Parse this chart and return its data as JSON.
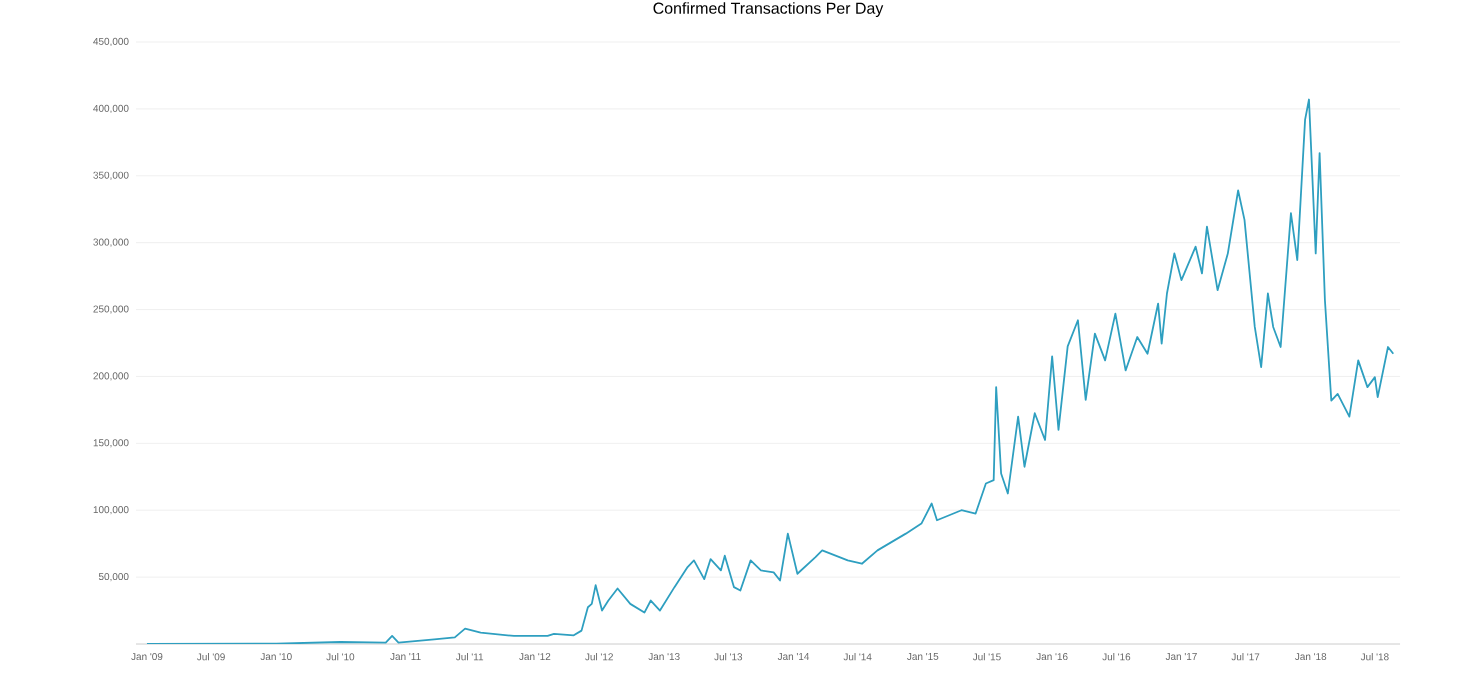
{
  "chart_data": {
    "type": "line",
    "title": "Confirmed Transactions Per Day",
    "color": "#2e9fc0",
    "grid": "y",
    "xlim": [
      "2008-12-01",
      "2018-09-10"
    ],
    "ylim": [
      0,
      450000
    ],
    "xticks": [
      {
        "value": "2009-01-01",
        "label": "Jan '09"
      },
      {
        "value": "2009-07-01",
        "label": "Jul '09"
      },
      {
        "value": "2010-01-01",
        "label": "Jan '10"
      },
      {
        "value": "2010-07-01",
        "label": "Jul '10"
      },
      {
        "value": "2011-01-01",
        "label": "Jan '11"
      },
      {
        "value": "2011-07-01",
        "label": "Jul '11"
      },
      {
        "value": "2012-01-01",
        "label": "Jan '12"
      },
      {
        "value": "2012-07-01",
        "label": "Jul '12"
      },
      {
        "value": "2013-01-01",
        "label": "Jan '13"
      },
      {
        "value": "2013-07-01",
        "label": "Jul '13"
      },
      {
        "value": "2014-01-01",
        "label": "Jan '14"
      },
      {
        "value": "2014-07-01",
        "label": "Jul '14"
      },
      {
        "value": "2015-01-01",
        "label": "Jan '15"
      },
      {
        "value": "2015-07-01",
        "label": "Jul '15"
      },
      {
        "value": "2016-01-01",
        "label": "Jan '16"
      },
      {
        "value": "2016-07-01",
        "label": "Jul '16"
      },
      {
        "value": "2017-01-01",
        "label": "Jan '17"
      },
      {
        "value": "2017-07-01",
        "label": "Jul '17"
      },
      {
        "value": "2018-01-01",
        "label": "Jan '18"
      },
      {
        "value": "2018-07-01",
        "label": "Jul '18"
      }
    ],
    "yticks": [
      {
        "value": 50000,
        "label": "50,000"
      },
      {
        "value": 100000,
        "label": "100,000"
      },
      {
        "value": 150000,
        "label": "150,000"
      },
      {
        "value": 200000,
        "label": "200,000"
      },
      {
        "value": 250000,
        "label": "250,000"
      },
      {
        "value": 300000,
        "label": "300,000"
      },
      {
        "value": 350000,
        "label": "350,000"
      },
      {
        "value": 400000,
        "label": "400,000"
      },
      {
        "value": 450000,
        "label": "450,000"
      }
    ],
    "x": [
      "2009-01-01",
      "2010-01-01",
      "2010-07-01",
      "2010-11-06",
      "2010-11-24",
      "2010-12-12",
      "2011-03-23",
      "2011-05-20",
      "2011-06-18",
      "2011-08-01",
      "2011-11-03",
      "2012-02-06",
      "2012-02-24",
      "2012-04-20",
      "2012-05-12",
      "2012-05-30",
      "2012-06-10",
      "2012-06-21",
      "2012-07-09",
      "2012-07-27",
      "2012-08-22",
      "2012-09-27",
      "2012-11-06",
      "2012-11-24",
      "2012-12-20",
      "2013-01-30",
      "2013-03-08",
      "2013-03-26",
      "2013-04-24",
      "2013-05-12",
      "2013-06-10",
      "2013-06-21",
      "2013-07-17",
      "2013-08-04",
      "2013-09-02",
      "2013-10-01",
      "2013-11-06",
      "2013-11-24",
      "2013-12-16",
      "2014-01-12",
      "2014-03-04",
      "2014-03-23",
      "2014-06-03",
      "2014-07-13",
      "2014-08-26",
      "2014-11-14",
      "2014-12-28",
      "2015-01-26",
      "2015-02-10",
      "2015-04-20",
      "2015-05-30",
      "2015-06-28",
      "2015-07-20",
      "2015-07-27",
      "2015-08-10",
      "2015-08-29",
      "2015-09-27",
      "2015-10-15",
      "2015-11-13",
      "2015-12-12",
      "2016-01-01",
      "2016-01-19",
      "2016-02-14",
      "2016-03-14",
      "2016-04-05",
      "2016-05-01",
      "2016-05-30",
      "2016-06-28",
      "2016-07-27",
      "2016-08-29",
      "2016-09-27",
      "2016-10-27",
      "2016-11-06",
      "2016-11-21",
      "2016-12-12",
      "2017-01-01",
      "2017-02-10",
      "2017-02-28",
      "2017-03-14",
      "2017-04-13",
      "2017-05-12",
      "2017-06-10",
      "2017-06-28",
      "2017-07-27",
      "2017-08-14",
      "2017-09-02",
      "2017-09-17",
      "2017-10-08",
      "2017-11-06",
      "2017-11-24",
      "2017-12-16",
      "2017-12-27",
      "2018-01-15",
      "2018-01-26",
      "2018-02-10",
      "2018-02-28",
      "2018-03-18",
      "2018-04-20",
      "2018-05-15",
      "2018-06-10",
      "2018-07-01",
      "2018-07-09",
      "2018-08-07",
      "2018-08-22"
    ],
    "values": [
      100,
      200,
      1500,
      1000,
      6000,
      1000,
      3500,
      5000,
      11500,
      8500,
      6000,
      6000,
      7500,
      6500,
      10000,
      27500,
      30000,
      44000,
      25000,
      32500,
      41500,
      30000,
      23500,
      32500,
      25000,
      42500,
      57500,
      62500,
      48500,
      63500,
      55000,
      66000,
      42500,
      40000,
      62500,
      55000,
      53500,
      47500,
      82500,
      52500,
      65000,
      70000,
      62500,
      60000,
      70000,
      82500,
      90000,
      105000,
      92500,
      100000,
      97500,
      120000,
      122500,
      192000,
      127500,
      112500,
      170000,
      132500,
      172500,
      152500,
      215000,
      160000,
      222500,
      242000,
      182500,
      232000,
      212000,
      247000,
      204500,
      229500,
      217000,
      254500,
      224500,
      262000,
      292000,
      272000,
      297000,
      277000,
      312000,
      264500,
      292000,
      339000,
      317000,
      237000,
      207000,
      262000,
      237000,
      222000,
      322000,
      287000,
      392000,
      407000,
      292000,
      367000,
      257000,
      182000,
      187000,
      170000,
      212000,
      192000,
      199500,
      184500,
      222000,
      217000
    ]
  }
}
